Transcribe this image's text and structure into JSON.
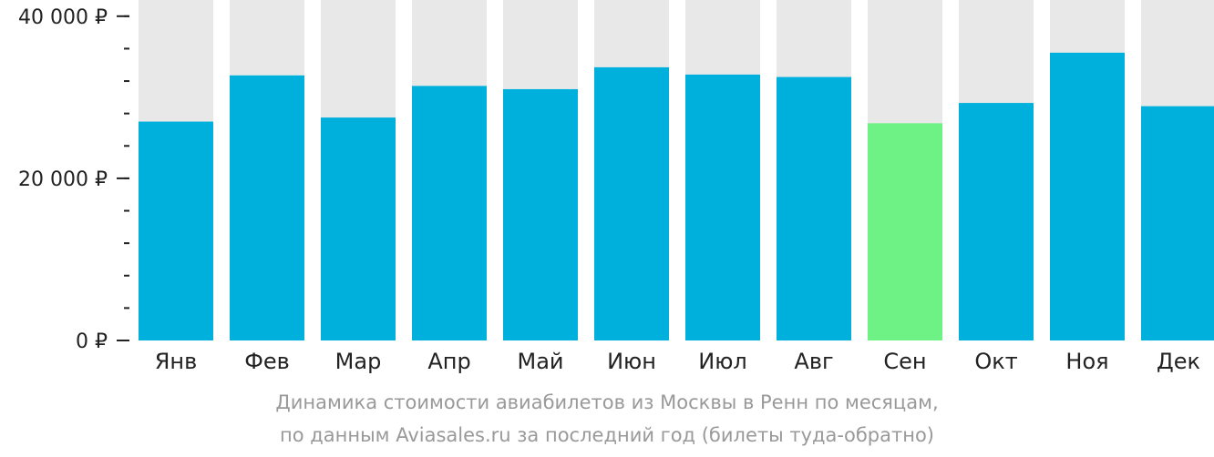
{
  "chart_data": {
    "type": "bar",
    "categories": [
      "Янв",
      "Фев",
      "Мар",
      "Апр",
      "Май",
      "Июн",
      "Июл",
      "Авг",
      "Сен",
      "Окт",
      "Ноя",
      "Дек"
    ],
    "values": [
      27000,
      32700,
      27500,
      31400,
      31000,
      33700,
      32800,
      32500,
      26800,
      29300,
      35500,
      28900
    ],
    "ylim": [
      0,
      42000
    ],
    "yticks": [
      {
        "value": 0,
        "label": "0 ₽"
      },
      {
        "value": 20000,
        "label": "20 000 ₽"
      },
      {
        "value": 40000,
        "label": "40 000 ₽"
      }
    ],
    "minor_tick_step": 4000,
    "highlight_index": 8,
    "colors": {
      "bar": "#00b0dc",
      "highlight": "#6ef286",
      "background": "#e8e8e8",
      "axis": "#222222"
    }
  },
  "caption": {
    "line1": "Динамика стоимости авиабилетов из Москвы в Ренн по месяцам,",
    "line2": "по данным Aviasales.ru за последний год (билеты туда-обратно)"
  }
}
